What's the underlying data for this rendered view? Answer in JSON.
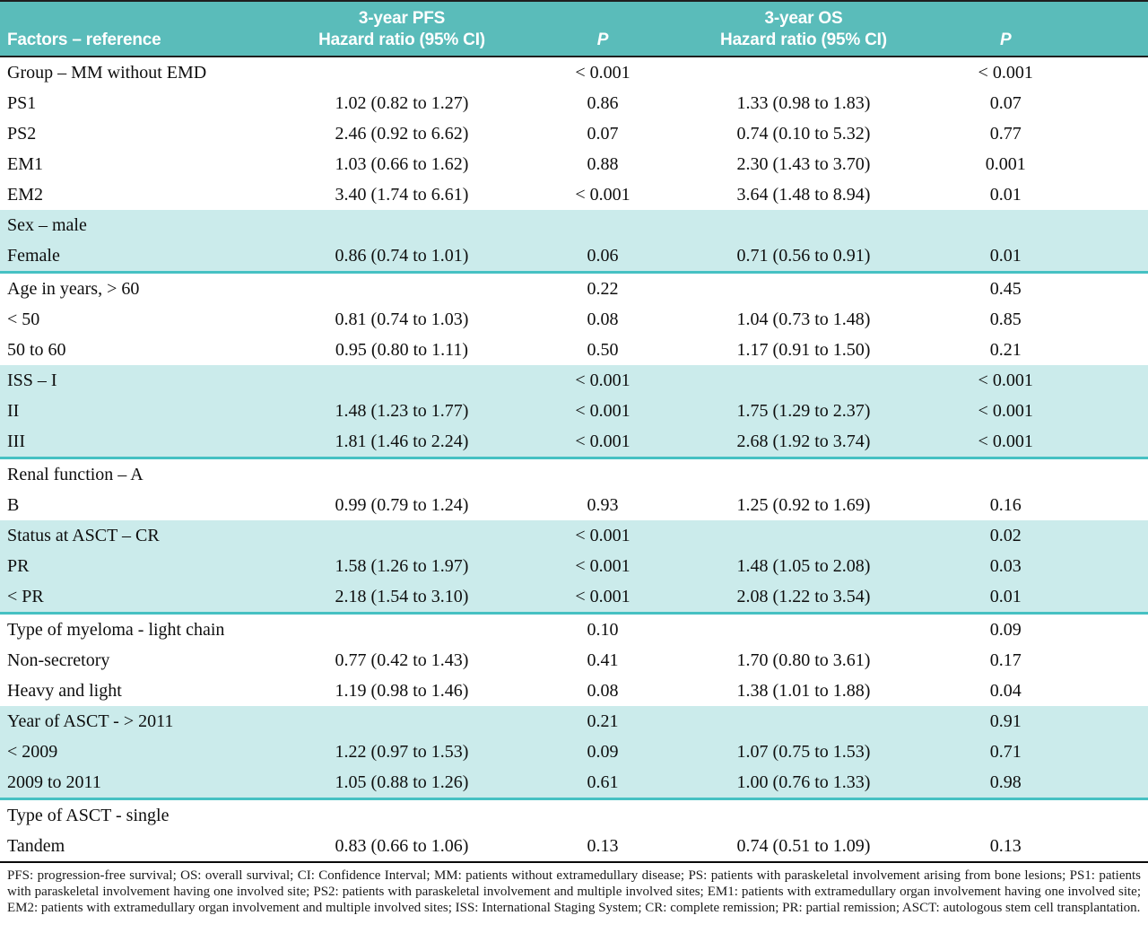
{
  "table": {
    "columns": {
      "factors": "Factors – reference",
      "pfs_title": "3-year PFS",
      "pfs_sub": "Hazard ratio (95% CI)",
      "pfs_p": "P",
      "os_title": "3-year OS",
      "os_sub": "Hazard ratio (95% CI)",
      "os_p": "P"
    },
    "groups": [
      {
        "shaded": false,
        "rows": [
          {
            "factor": "Group – MM without EMD",
            "pfs_hr": "",
            "pfs_p": "< 0.001",
            "os_hr": "",
            "os_p": "< 0.001"
          },
          {
            "factor": "PS1",
            "pfs_hr": "1.02 (0.82 to 1.27)",
            "pfs_p": "0.86",
            "os_hr": "1.33 (0.98 to 1.83)",
            "os_p": "0.07"
          },
          {
            "factor": "PS2",
            "pfs_hr": "2.46 (0.92 to 6.62)",
            "pfs_p": "0.07",
            "os_hr": "0.74 (0.10 to 5.32)",
            "os_p": "0.77"
          },
          {
            "factor": "EM1",
            "pfs_hr": "1.03 (0.66 to 1.62)",
            "pfs_p": "0.88",
            "os_hr": "2.30 (1.43 to 3.70)",
            "os_p": "0.001"
          },
          {
            "factor": "EM2",
            "pfs_hr": "3.40 (1.74 to 6.61)",
            "pfs_p": "< 0.001",
            "os_hr": "3.64 (1.48 to 8.94)",
            "os_p": "0.01"
          }
        ]
      },
      {
        "shaded": true,
        "rows": [
          {
            "factor": "Sex – male",
            "pfs_hr": "",
            "pfs_p": "",
            "os_hr": "",
            "os_p": ""
          },
          {
            "factor": "Female",
            "pfs_hr": "0.86 (0.74 to 1.01)",
            "pfs_p": "0.06",
            "os_hr": "0.71 (0.56 to 0.91)",
            "os_p": "0.01"
          }
        ]
      },
      {
        "shaded": false,
        "rows": [
          {
            "factor": "Age in years, > 60",
            "pfs_hr": "",
            "pfs_p": "0.22",
            "os_hr": "",
            "os_p": "0.45"
          },
          {
            "factor": "< 50",
            "pfs_hr": "0.81 (0.74 to 1.03)",
            "pfs_p": "0.08",
            "os_hr": "1.04 (0.73 to 1.48)",
            "os_p": "0.85"
          },
          {
            "factor": "50 to 60",
            "pfs_hr": "0.95 (0.80 to 1.11)",
            "pfs_p": "0.50",
            "os_hr": "1.17 (0.91 to 1.50)",
            "os_p": "0.21"
          }
        ]
      },
      {
        "shaded": true,
        "rows": [
          {
            "factor": "ISS – I",
            "pfs_hr": "",
            "pfs_p": "< 0.001",
            "os_hr": "",
            "os_p": "< 0.001"
          },
          {
            "factor": "II",
            "pfs_hr": "1.48 (1.23 to 1.77)",
            "pfs_p": "< 0.001",
            "os_hr": "1.75 (1.29 to 2.37)",
            "os_p": "< 0.001"
          },
          {
            "factor": "III",
            "pfs_hr": "1.81 (1.46 to 2.24)",
            "pfs_p": "< 0.001",
            "os_hr": "2.68 (1.92 to 3.74)",
            "os_p": "< 0.001"
          }
        ]
      },
      {
        "shaded": false,
        "rows": [
          {
            "factor": "Renal function – A",
            "pfs_hr": "",
            "pfs_p": "",
            "os_hr": "",
            "os_p": ""
          },
          {
            "factor": "B",
            "pfs_hr": "0.99 (0.79 to 1.24)",
            "pfs_p": "0.93",
            "os_hr": "1.25 (0.92 to 1.69)",
            "os_p": "0.16"
          }
        ]
      },
      {
        "shaded": true,
        "rows": [
          {
            "factor": "Status at ASCT – CR",
            "pfs_hr": "",
            "pfs_p": "< 0.001",
            "os_hr": "",
            "os_p": "0.02"
          },
          {
            "factor": "PR",
            "pfs_hr": "1.58 (1.26 to 1.97)",
            "pfs_p": "< 0.001",
            "os_hr": "1.48 (1.05 to 2.08)",
            "os_p": "0.03"
          },
          {
            "factor": "< PR",
            "pfs_hr": "2.18 (1.54 to 3.10)",
            "pfs_p": "< 0.001",
            "os_hr": "2.08 (1.22 to 3.54)",
            "os_p": "0.01"
          }
        ]
      },
      {
        "shaded": false,
        "rows": [
          {
            "factor": "Type of myeloma - light chain",
            "pfs_hr": "",
            "pfs_p": "0.10",
            "os_hr": "",
            "os_p": "0.09"
          },
          {
            "factor": "Non-secretory",
            "pfs_hr": "0.77 (0.42 to 1.43)",
            "pfs_p": "0.41",
            "os_hr": "1.70 (0.80 to 3.61)",
            "os_p": "0.17"
          },
          {
            "factor": "Heavy and light",
            "pfs_hr": "1.19 (0.98 to 1.46)",
            "pfs_p": "0.08",
            "os_hr": "1.38 (1.01 to 1.88)",
            "os_p": "0.04"
          }
        ]
      },
      {
        "shaded": true,
        "rows": [
          {
            "factor": "Year of ASCT - > 2011",
            "pfs_hr": "",
            "pfs_p": "0.21",
            "os_hr": "",
            "os_p": "0.91"
          },
          {
            "factor": "< 2009",
            "pfs_hr": "1.22 (0.97 to 1.53)",
            "pfs_p": "0.09",
            "os_hr": "1.07 (0.75 to 1.53)",
            "os_p": "0.71"
          },
          {
            "factor": "2009 to 2011",
            "pfs_hr": "1.05 (0.88 to 1.26)",
            "pfs_p": "0.61",
            "os_hr": "1.00 (0.76 to 1.33)",
            "os_p": "0.98"
          }
        ]
      },
      {
        "shaded": false,
        "rows": [
          {
            "factor": "Type of ASCT - single",
            "pfs_hr": "",
            "pfs_p": "",
            "os_hr": "",
            "os_p": ""
          },
          {
            "factor": "Tandem",
            "pfs_hr": "0.83 (0.66 to 1.06)",
            "pfs_p": "0.13",
            "os_hr": "0.74 (0.51 to 1.09)",
            "os_p": "0.13"
          }
        ]
      }
    ]
  },
  "footnote": "PFS: progression-free survival; OS: overall survival; CI: Confidence Interval; MM: patients without extramedullary disease; PS: patients with paraskeletal involvement arising from bone lesions; PS1: patients with paraskeletal involvement having one involved site; PS2: patients with paraskeletal involvement and multiple involved sites; EM1: patients with extramedullary organ involvement having one involved site; EM2: patients with extramedullary organ involvement and multiple involved sites; ISS: International Staging System; CR: complete remission; PR: partial remission; ASCT: autologous stem cell transplantation.",
  "colors": {
    "header_bg": "#5abcba",
    "shaded_row_bg": "#cbebeb",
    "band_divider": "#46c1c3",
    "rule": "#1f1f1f"
  }
}
